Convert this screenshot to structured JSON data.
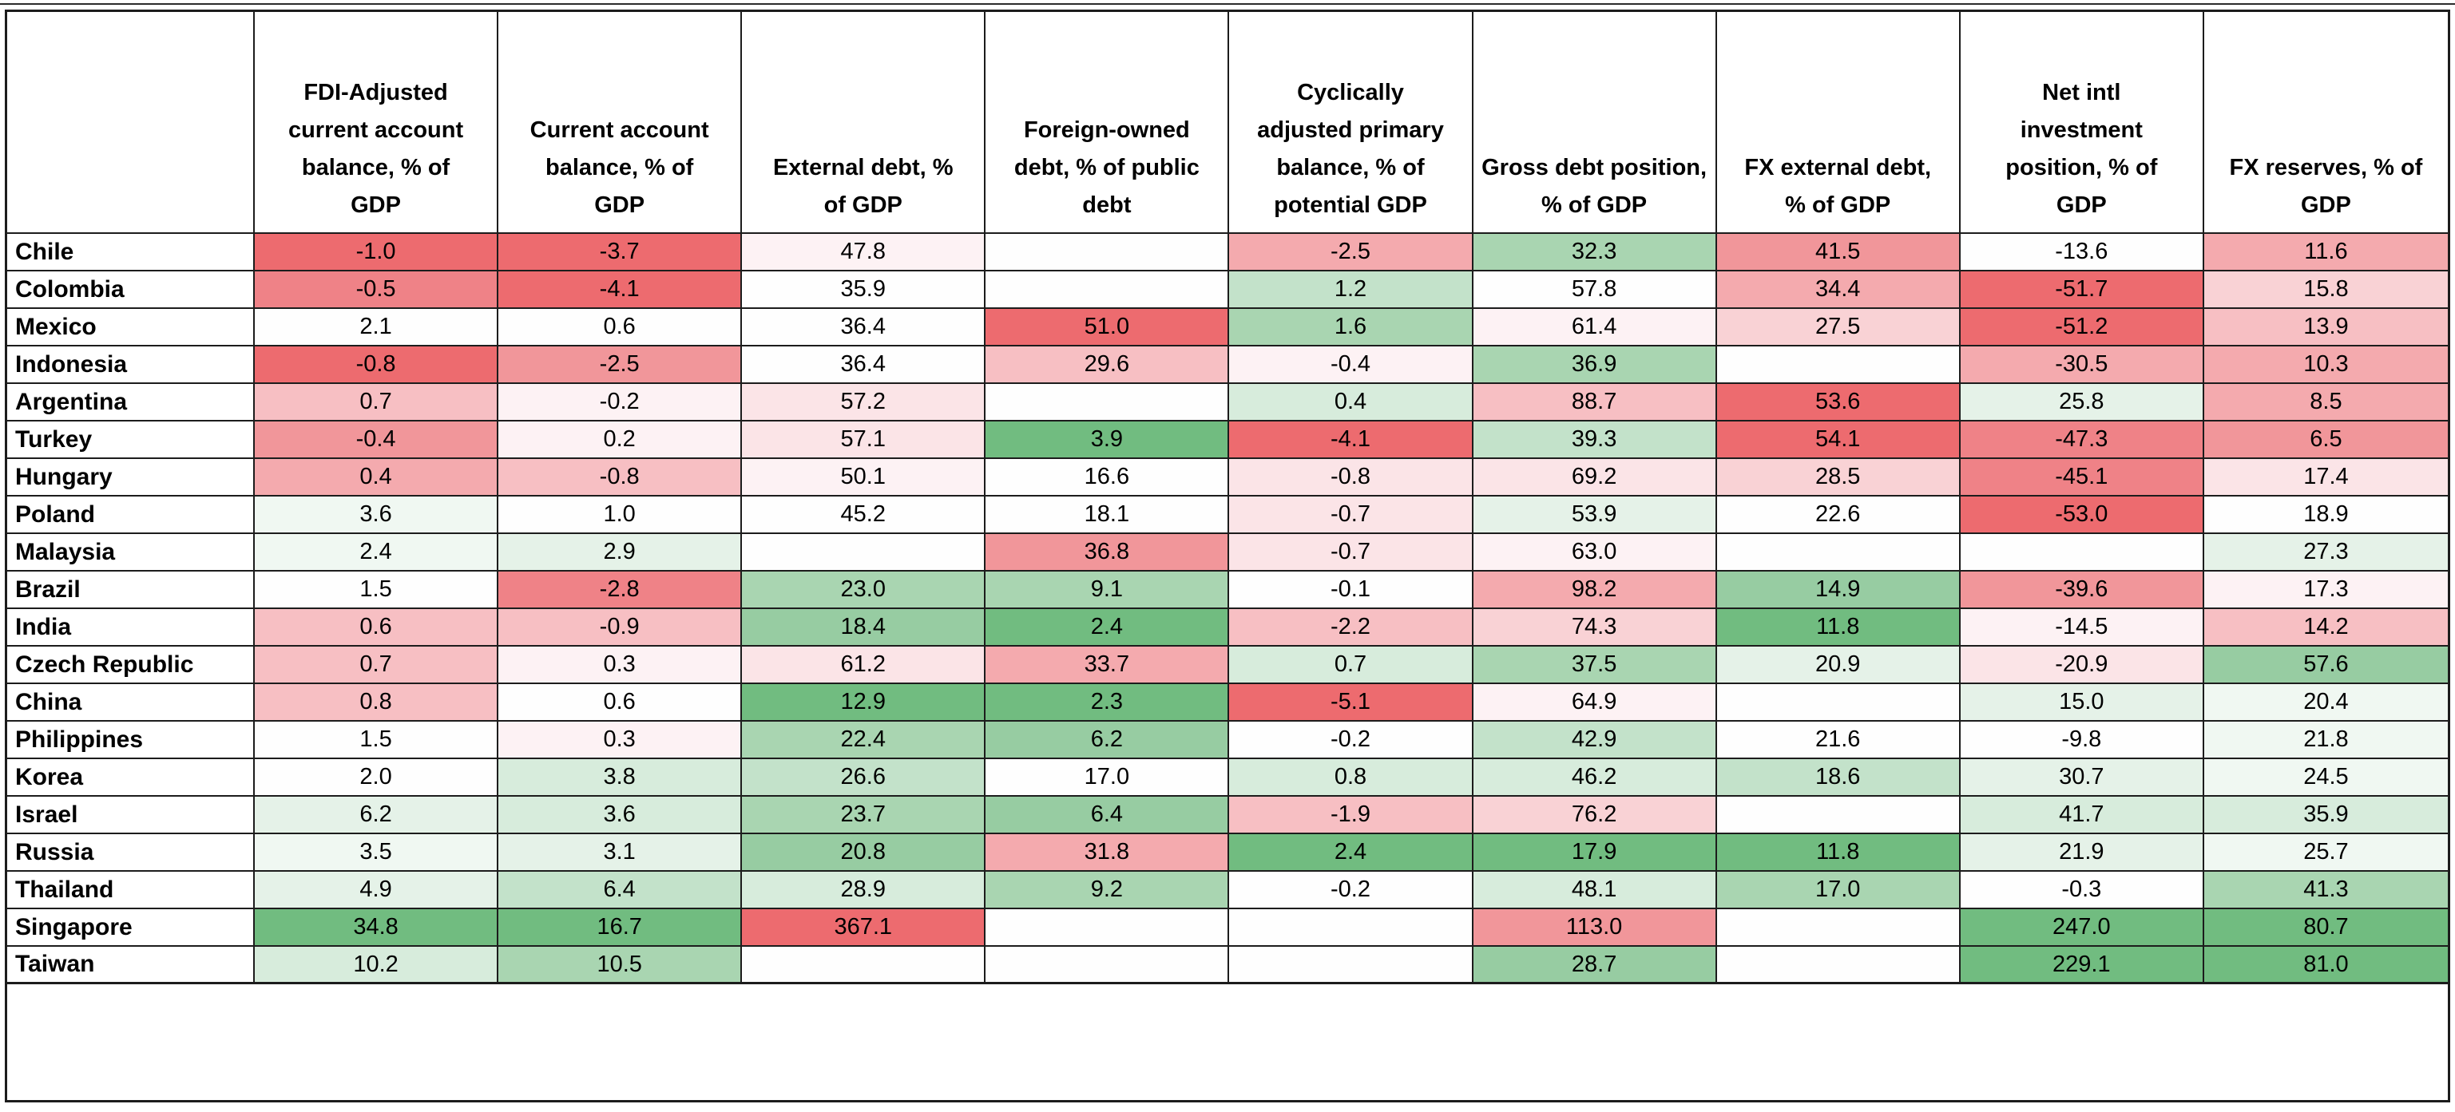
{
  "chart_data": {
    "type": "table",
    "columns": [
      "",
      "FDI-Adjusted\ncurrent account\nbalance, % of\nGDP",
      "Current account\nbalance, % of\nGDP",
      "External debt, %\nof GDP",
      "Foreign-owned\ndebt, % of public\ndebt",
      "Cyclically\nadjusted primary\nbalance, % of\npotential GDP",
      "Gross debt position,\n% of GDP",
      "FX external debt,\n% of GDP",
      "Net intl\ninvestment\nposition, % of\nGDP",
      "FX reserves, % of\nGDP"
    ],
    "palette": {
      "red3": "#ed6b6f",
      "red2": "#ef8287",
      "red1": "#f1969a",
      "pink3": "#f4aaae",
      "pink2": "#f7bfc3",
      "pink1": "#f9d2d5",
      "pink0": "#fbe4e7",
      "pinkF": "#fdf2f4",
      "white": "#fefefe",
      "greenF": "#f0f8f2",
      "green0": "#e5f2e8",
      "green1": "#d7ecdc",
      "green2": "#c3e2ca",
      "green3": "#a9d5b1",
      "green4": "#97cca2",
      "green5": "#71bc80"
    },
    "grid_color": "#1c1c1c",
    "rows": [
      {
        "country": "Chile",
        "cells": [
          {
            "v": "-1.0",
            "c": "red3"
          },
          {
            "v": "-3.7",
            "c": "red3"
          },
          {
            "v": "47.8",
            "c": "pinkF"
          },
          {
            "v": "",
            "c": "white"
          },
          {
            "v": "-2.5",
            "c": "pink3"
          },
          {
            "v": "32.3",
            "c": "green3"
          },
          {
            "v": "41.5",
            "c": "red1"
          },
          {
            "v": "-13.6",
            "c": "white"
          },
          {
            "v": "11.6",
            "c": "pink3"
          }
        ]
      },
      {
        "country": "Colombia",
        "cells": [
          {
            "v": "-0.5",
            "c": "red2"
          },
          {
            "v": "-4.1",
            "c": "red3"
          },
          {
            "v": "35.9",
            "c": "white"
          },
          {
            "v": "",
            "c": "white"
          },
          {
            "v": "1.2",
            "c": "green2"
          },
          {
            "v": "57.8",
            "c": "white"
          },
          {
            "v": "34.4",
            "c": "pink3"
          },
          {
            "v": "-51.7",
            "c": "red3"
          },
          {
            "v": "15.8",
            "c": "pink1"
          }
        ]
      },
      {
        "country": "Mexico",
        "cells": [
          {
            "v": "2.1",
            "c": "white"
          },
          {
            "v": "0.6",
            "c": "white"
          },
          {
            "v": "36.4",
            "c": "white"
          },
          {
            "v": "51.0",
            "c": "red3"
          },
          {
            "v": "1.6",
            "c": "green3"
          },
          {
            "v": "61.4",
            "c": "pinkF"
          },
          {
            "v": "27.5",
            "c": "pink1"
          },
          {
            "v": "-51.2",
            "c": "red3"
          },
          {
            "v": "13.9",
            "c": "pink2"
          }
        ]
      },
      {
        "country": "Indonesia",
        "cells": [
          {
            "v": "-0.8",
            "c": "red3"
          },
          {
            "v": "-2.5",
            "c": "red1"
          },
          {
            "v": "36.4",
            "c": "white"
          },
          {
            "v": "29.6",
            "c": "pink2"
          },
          {
            "v": "-0.4",
            "c": "pinkF"
          },
          {
            "v": "36.9",
            "c": "green3"
          },
          {
            "v": "",
            "c": "white"
          },
          {
            "v": "-30.5",
            "c": "pink3"
          },
          {
            "v": "10.3",
            "c": "pink3"
          }
        ]
      },
      {
        "country": "Argentina",
        "cells": [
          {
            "v": "0.7",
            "c": "pink2"
          },
          {
            "v": "-0.2",
            "c": "pinkF"
          },
          {
            "v": "57.2",
            "c": "pink0"
          },
          {
            "v": "",
            "c": "white"
          },
          {
            "v": "0.4",
            "c": "green1"
          },
          {
            "v": "88.7",
            "c": "pink2"
          },
          {
            "v": "53.6",
            "c": "red3"
          },
          {
            "v": "25.8",
            "c": "green0"
          },
          {
            "v": "8.5",
            "c": "pink3"
          }
        ]
      },
      {
        "country": "Turkey",
        "cells": [
          {
            "v": "-0.4",
            "c": "red1"
          },
          {
            "v": "0.2",
            "c": "pinkF"
          },
          {
            "v": "57.1",
            "c": "pink0"
          },
          {
            "v": "3.9",
            "c": "green5"
          },
          {
            "v": "-4.1",
            "c": "red3"
          },
          {
            "v": "39.3",
            "c": "green2"
          },
          {
            "v": "54.1",
            "c": "red3"
          },
          {
            "v": "-47.3",
            "c": "red2"
          },
          {
            "v": "6.5",
            "c": "red1"
          }
        ]
      },
      {
        "country": "Hungary",
        "cells": [
          {
            "v": "0.4",
            "c": "pink3"
          },
          {
            "v": "-0.8",
            "c": "pink2"
          },
          {
            "v": "50.1",
            "c": "pinkF"
          },
          {
            "v": "16.6",
            "c": "white"
          },
          {
            "v": "-0.8",
            "c": "pink0"
          },
          {
            "v": "69.2",
            "c": "pink0"
          },
          {
            "v": "28.5",
            "c": "pink1"
          },
          {
            "v": "-45.1",
            "c": "red2"
          },
          {
            "v": "17.4",
            "c": "pink0"
          }
        ]
      },
      {
        "country": "Poland",
        "cells": [
          {
            "v": "3.6",
            "c": "greenF"
          },
          {
            "v": "1.0",
            "c": "white"
          },
          {
            "v": "45.2",
            "c": "white"
          },
          {
            "v": "18.1",
            "c": "white"
          },
          {
            "v": "-0.7",
            "c": "pink0"
          },
          {
            "v": "53.9",
            "c": "green0"
          },
          {
            "v": "22.6",
            "c": "white"
          },
          {
            "v": "-53.0",
            "c": "red3"
          },
          {
            "v": "18.9",
            "c": "white"
          }
        ]
      },
      {
        "country": "Malaysia",
        "cells": [
          {
            "v": "2.4",
            "c": "greenF"
          },
          {
            "v": "2.9",
            "c": "green0"
          },
          {
            "v": "",
            "c": "white"
          },
          {
            "v": "36.8",
            "c": "red1"
          },
          {
            "v": "-0.7",
            "c": "pink0"
          },
          {
            "v": "63.0",
            "c": "pinkF"
          },
          {
            "v": "",
            "c": "white"
          },
          {
            "v": "",
            "c": "white"
          },
          {
            "v": "27.3",
            "c": "green0"
          }
        ]
      },
      {
        "country": "Brazil",
        "cells": [
          {
            "v": "1.5",
            "c": "white"
          },
          {
            "v": "-2.8",
            "c": "red2"
          },
          {
            "v": "23.0",
            "c": "green3"
          },
          {
            "v": "9.1",
            "c": "green3"
          },
          {
            "v": "-0.1",
            "c": "white"
          },
          {
            "v": "98.2",
            "c": "pink3"
          },
          {
            "v": "14.9",
            "c": "green4"
          },
          {
            "v": "-39.6",
            "c": "red1"
          },
          {
            "v": "17.3",
            "c": "pinkF"
          }
        ]
      },
      {
        "country": "India",
        "cells": [
          {
            "v": "0.6",
            "c": "pink2"
          },
          {
            "v": "-0.9",
            "c": "pink2"
          },
          {
            "v": "18.4",
            "c": "green4"
          },
          {
            "v": "2.4",
            "c": "green5"
          },
          {
            "v": "-2.2",
            "c": "pink2"
          },
          {
            "v": "74.3",
            "c": "pink1"
          },
          {
            "v": "11.8",
            "c": "green5"
          },
          {
            "v": "-14.5",
            "c": "pinkF"
          },
          {
            "v": "14.2",
            "c": "pink2"
          }
        ]
      },
      {
        "country": "Czech Republic",
        "cells": [
          {
            "v": "0.7",
            "c": "pink2"
          },
          {
            "v": "0.3",
            "c": "pinkF"
          },
          {
            "v": "61.2",
            "c": "pink0"
          },
          {
            "v": "33.7",
            "c": "pink3"
          },
          {
            "v": "0.7",
            "c": "green1"
          },
          {
            "v": "37.5",
            "c": "green3"
          },
          {
            "v": "20.9",
            "c": "green0"
          },
          {
            "v": "-20.9",
            "c": "pink0"
          },
          {
            "v": "57.6",
            "c": "green4"
          }
        ]
      },
      {
        "country": "China",
        "cells": [
          {
            "v": "0.8",
            "c": "pink2"
          },
          {
            "v": "0.6",
            "c": "white"
          },
          {
            "v": "12.9",
            "c": "green5"
          },
          {
            "v": "2.3",
            "c": "green5"
          },
          {
            "v": "-5.1",
            "c": "red3"
          },
          {
            "v": "64.9",
            "c": "pinkF"
          },
          {
            "v": "",
            "c": "white"
          },
          {
            "v": "15.0",
            "c": "green0"
          },
          {
            "v": "20.4",
            "c": "greenF"
          }
        ]
      },
      {
        "country": "Philippines",
        "cells": [
          {
            "v": "1.5",
            "c": "white"
          },
          {
            "v": "0.3",
            "c": "pinkF"
          },
          {
            "v": "22.4",
            "c": "green3"
          },
          {
            "v": "6.2",
            "c": "green4"
          },
          {
            "v": "-0.2",
            "c": "white"
          },
          {
            "v": "42.9",
            "c": "green2"
          },
          {
            "v": "21.6",
            "c": "white"
          },
          {
            "v": "-9.8",
            "c": "white"
          },
          {
            "v": "21.8",
            "c": "greenF"
          }
        ]
      },
      {
        "country": "Korea",
        "cells": [
          {
            "v": "2.0",
            "c": "white"
          },
          {
            "v": "3.8",
            "c": "green1"
          },
          {
            "v": "26.6",
            "c": "green2"
          },
          {
            "v": "17.0",
            "c": "white"
          },
          {
            "v": "0.8",
            "c": "green1"
          },
          {
            "v": "46.2",
            "c": "green1"
          },
          {
            "v": "18.6",
            "c": "green2"
          },
          {
            "v": "30.7",
            "c": "green0"
          },
          {
            "v": "24.5",
            "c": "greenF"
          }
        ]
      },
      {
        "country": "Israel",
        "cells": [
          {
            "v": "6.2",
            "c": "green0"
          },
          {
            "v": "3.6",
            "c": "green1"
          },
          {
            "v": "23.7",
            "c": "green3"
          },
          {
            "v": "6.4",
            "c": "green4"
          },
          {
            "v": "-1.9",
            "c": "pink2"
          },
          {
            "v": "76.2",
            "c": "pink1"
          },
          {
            "v": "",
            "c": "white"
          },
          {
            "v": "41.7",
            "c": "green1"
          },
          {
            "v": "35.9",
            "c": "green1"
          }
        ]
      },
      {
        "country": "Russia",
        "cells": [
          {
            "v": "3.5",
            "c": "greenF"
          },
          {
            "v": "3.1",
            "c": "green0"
          },
          {
            "v": "20.8",
            "c": "green4"
          },
          {
            "v": "31.8",
            "c": "pink3"
          },
          {
            "v": "2.4",
            "c": "green5"
          },
          {
            "v": "17.9",
            "c": "green5"
          },
          {
            "v": "11.8",
            "c": "green5"
          },
          {
            "v": "21.9",
            "c": "green0"
          },
          {
            "v": "25.7",
            "c": "greenF"
          }
        ]
      },
      {
        "country": "Thailand",
        "cells": [
          {
            "v": "4.9",
            "c": "green0"
          },
          {
            "v": "6.4",
            "c": "green2"
          },
          {
            "v": "28.9",
            "c": "green1"
          },
          {
            "v": "9.2",
            "c": "green3"
          },
          {
            "v": "-0.2",
            "c": "white"
          },
          {
            "v": "48.1",
            "c": "green1"
          },
          {
            "v": "17.0",
            "c": "green3"
          },
          {
            "v": "-0.3",
            "c": "white"
          },
          {
            "v": "41.3",
            "c": "green3"
          }
        ]
      },
      {
        "country": "Singapore",
        "cells": [
          {
            "v": "34.8",
            "c": "green5"
          },
          {
            "v": "16.7",
            "c": "green5"
          },
          {
            "v": "367.1",
            "c": "red3"
          },
          {
            "v": "",
            "c": "white"
          },
          {
            "v": "",
            "c": "white"
          },
          {
            "v": "113.0",
            "c": "red1"
          },
          {
            "v": "",
            "c": "white"
          },
          {
            "v": "247.0",
            "c": "green5"
          },
          {
            "v": "80.7",
            "c": "green5"
          }
        ]
      },
      {
        "country": "Taiwan",
        "cells": [
          {
            "v": "10.2",
            "c": "green1"
          },
          {
            "v": "10.5",
            "c": "green3"
          },
          {
            "v": "",
            "c": "white"
          },
          {
            "v": "",
            "c": "white"
          },
          {
            "v": "",
            "c": "white"
          },
          {
            "v": "28.7",
            "c": "green4"
          },
          {
            "v": "",
            "c": "white"
          },
          {
            "v": "229.1",
            "c": "green5"
          },
          {
            "v": "81.0",
            "c": "green5"
          }
        ]
      }
    ]
  }
}
